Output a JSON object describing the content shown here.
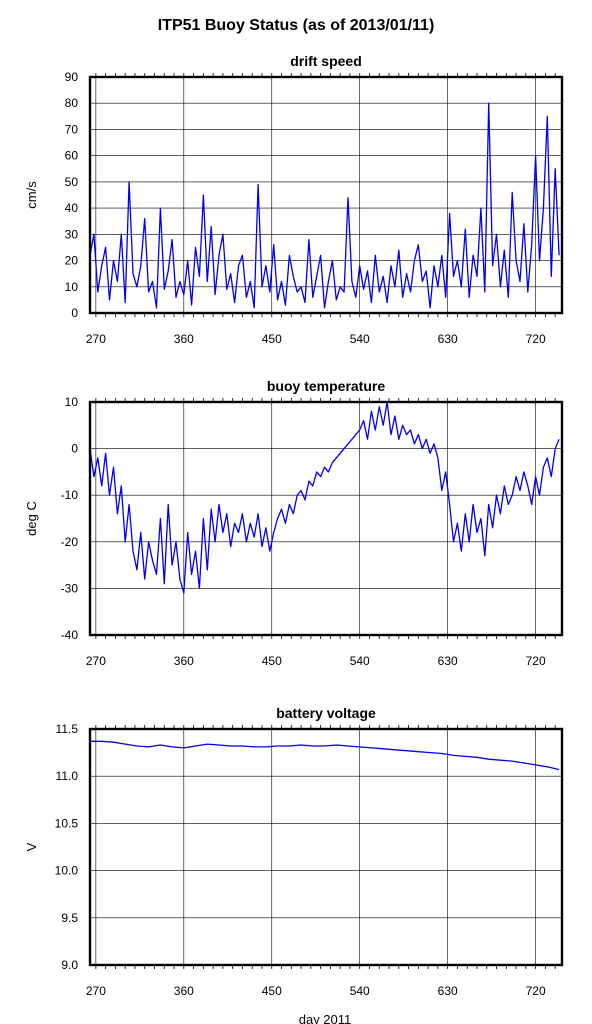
{
  "figure": {
    "title": "ITP51 Buoy Status (as of 2013/01/11)",
    "xlabel": "day 2011"
  },
  "colors": {
    "series": "#0000ee",
    "grid": "#000000",
    "frame": "#000000"
  },
  "chart_data": [
    {
      "type": "line",
      "title": "drift speed",
      "ylabel": "cm/s",
      "xlim": [
        264,
        747
      ],
      "ylim": [
        0,
        90
      ],
      "xticks": [
        270,
        360,
        450,
        540,
        630,
        720
      ],
      "yticks": [
        0,
        10,
        20,
        30,
        40,
        50,
        60,
        70,
        80,
        90
      ],
      "grid": true,
      "series": [
        {
          "x": [
            264,
            268,
            272,
            276,
            280,
            284,
            288,
            292,
            296,
            300,
            304,
            308,
            312,
            316,
            320,
            324,
            328,
            332,
            336,
            340,
            344,
            348,
            352,
            356,
            360,
            364,
            368,
            372,
            376,
            380,
            384,
            388,
            392,
            396,
            400,
            404,
            408,
            412,
            416,
            420,
            424,
            428,
            432,
            436,
            440,
            444,
            448,
            452,
            456,
            460,
            464,
            468,
            472,
            476,
            480,
            484,
            488,
            492,
            496,
            500,
            504,
            508,
            512,
            516,
            520,
            524,
            528,
            532,
            536,
            540,
            544,
            548,
            552,
            556,
            560,
            564,
            568,
            572,
            576,
            580,
            584,
            588,
            592,
            596,
            600,
            604,
            608,
            612,
            616,
            620,
            624,
            628,
            632,
            636,
            640,
            644,
            648,
            652,
            656,
            660,
            664,
            668,
            672,
            676,
            680,
            684,
            688,
            692,
            696,
            700,
            704,
            708,
            712,
            716,
            720,
            724,
            728,
            732,
            736,
            740,
            744
          ],
          "y": [
            22,
            30,
            8,
            18,
            25,
            5,
            20,
            12,
            30,
            4,
            50,
            15,
            10,
            18,
            36,
            8,
            12,
            2,
            40,
            9,
            16,
            28,
            6,
            12,
            7,
            20,
            3,
            25,
            14,
            45,
            12,
            33,
            7,
            22,
            30,
            9,
            15,
            4,
            18,
            22,
            6,
            12,
            2,
            49,
            10,
            18,
            8,
            26,
            5,
            12,
            3,
            22,
            14,
            8,
            10,
            4,
            28,
            6,
            14,
            22,
            2,
            12,
            20,
            5,
            10,
            8,
            44,
            12,
            6,
            18,
            9,
            16,
            4,
            22,
            8,
            14,
            4,
            18,
            10,
            24,
            6,
            15,
            8,
            20,
            26,
            12,
            16,
            2,
            18,
            10,
            22,
            6,
            38,
            14,
            20,
            10,
            32,
            6,
            22,
            14,
            40,
            8,
            80,
            18,
            30,
            10,
            24,
            6,
            46,
            20,
            12,
            34,
            8,
            26,
            60,
            20,
            40,
            75,
            14,
            55,
            22
          ]
        }
      ]
    },
    {
      "type": "line",
      "title": "buoy temperature",
      "ylabel": "deg C",
      "xlim": [
        264,
        747
      ],
      "ylim": [
        -40,
        10
      ],
      "xticks": [
        270,
        360,
        450,
        540,
        630,
        720
      ],
      "yticks": [
        -40,
        -30,
        -20,
        -10,
        0,
        10
      ],
      "grid": true,
      "series": [
        {
          "x": [
            264,
            268,
            272,
            276,
            280,
            284,
            288,
            292,
            296,
            300,
            304,
            308,
            312,
            316,
            320,
            324,
            328,
            332,
            336,
            340,
            344,
            348,
            352,
            356,
            360,
            364,
            368,
            372,
            376,
            380,
            384,
            388,
            392,
            396,
            400,
            404,
            408,
            412,
            416,
            420,
            424,
            428,
            432,
            436,
            440,
            444,
            448,
            452,
            456,
            460,
            464,
            468,
            472,
            476,
            480,
            484,
            488,
            492,
            496,
            500,
            504,
            508,
            512,
            516,
            520,
            524,
            528,
            532,
            536,
            540,
            544,
            548,
            552,
            556,
            560,
            564,
            568,
            572,
            576,
            580,
            584,
            588,
            592,
            596,
            600,
            604,
            608,
            612,
            616,
            620,
            624,
            628,
            632,
            636,
            640,
            644,
            648,
            652,
            656,
            660,
            664,
            668,
            672,
            676,
            680,
            684,
            688,
            692,
            696,
            700,
            704,
            708,
            712,
            716,
            720,
            724,
            728,
            732,
            736,
            740,
            744
          ],
          "y": [
            0,
            -6,
            -2,
            -8,
            -1,
            -10,
            -4,
            -14,
            -8,
            -20,
            -12,
            -22,
            -26,
            -18,
            -28,
            -20,
            -24,
            -27,
            -15,
            -29,
            -12,
            -25,
            -20,
            -28,
            -31,
            -18,
            -27,
            -22,
            -30,
            -15,
            -26,
            -13,
            -20,
            -12,
            -18,
            -14,
            -21,
            -16,
            -18,
            -14,
            -20,
            -16,
            -19,
            -14,
            -21,
            -17,
            -22,
            -18,
            -15,
            -13,
            -16,
            -12,
            -14,
            -10,
            -9,
            -11,
            -7,
            -8,
            -5,
            -6,
            -4,
            -5,
            -3,
            -2,
            -1,
            0,
            1,
            2,
            3,
            4,
            6,
            2,
            8,
            4,
            9,
            5,
            10,
            3,
            7,
            2,
            5,
            3,
            4,
            1,
            3,
            0,
            2,
            -1,
            1,
            -2,
            -9,
            -5,
            -12,
            -20,
            -16,
            -22,
            -14,
            -20,
            -12,
            -18,
            -15,
            -23,
            -12,
            -17,
            -10,
            -14,
            -8,
            -12,
            -10,
            -6,
            -9,
            -5,
            -8,
            -12,
            -6,
            -10,
            -4,
            -2,
            -6,
            0,
            2
          ]
        }
      ]
    },
    {
      "type": "line",
      "title": "battery voltage",
      "ylabel": "V",
      "xlim": [
        264,
        747
      ],
      "ylim": [
        9.0,
        11.5
      ],
      "xticks": [
        270,
        360,
        450,
        540,
        630,
        720
      ],
      "yticks": [
        "9.0",
        "9.5",
        "10.0",
        "10.5",
        "11.0",
        "11.5"
      ],
      "grid": true,
      "series": [
        {
          "x": [
            264,
            276,
            288,
            300,
            312,
            324,
            336,
            348,
            360,
            372,
            384,
            396,
            408,
            420,
            432,
            444,
            456,
            468,
            480,
            492,
            504,
            516,
            528,
            540,
            552,
            564,
            576,
            588,
            600,
            612,
            624,
            636,
            648,
            660,
            672,
            684,
            696,
            708,
            720,
            732,
            744
          ],
          "y": [
            11.37,
            11.37,
            11.36,
            11.34,
            11.32,
            11.31,
            11.33,
            11.31,
            11.3,
            11.32,
            11.34,
            11.33,
            11.32,
            11.32,
            11.31,
            11.31,
            11.32,
            11.32,
            11.33,
            11.32,
            11.32,
            11.33,
            11.32,
            11.31,
            11.3,
            11.29,
            11.28,
            11.27,
            11.26,
            11.25,
            11.24,
            11.22,
            11.21,
            11.2,
            11.18,
            11.17,
            11.16,
            11.14,
            11.12,
            11.1,
            11.07
          ]
        }
      ]
    }
  ]
}
